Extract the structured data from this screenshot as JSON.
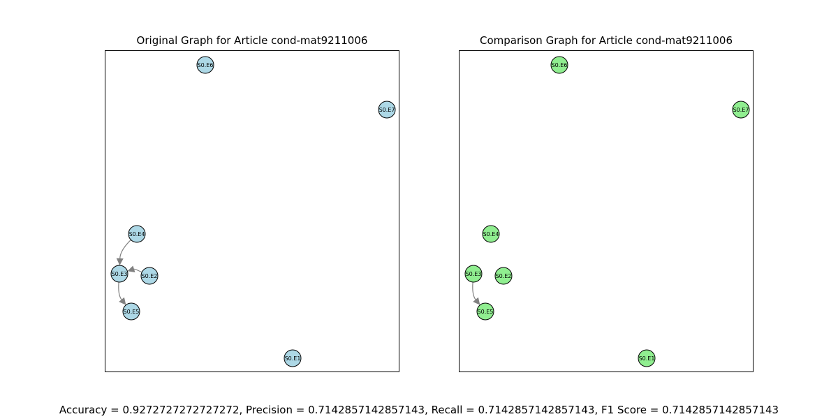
{
  "colors": {
    "original_node": "#add8e6",
    "comparison_node": "#90ee90",
    "edge": "#808080",
    "node_outline": "#000000"
  },
  "graphs": [
    {
      "title": "Original Graph for Article cond-mat9211006",
      "nodes": [
        "S0.E6",
        "S0.E7",
        "S0.E4",
        "S0.E3",
        "S0.E2",
        "S0.E5",
        "S0.E1"
      ],
      "edges": [
        {
          "from": "S0.E4",
          "to": "S0.E3"
        },
        {
          "from": "S0.E2",
          "to": "S0.E3"
        },
        {
          "from": "S0.E3",
          "to": "S0.E5"
        }
      ]
    },
    {
      "title": "Comparison Graph for Article cond-mat9211006",
      "nodes": [
        "S0.E6",
        "S0.E7",
        "S0.E4",
        "S0.E3",
        "S0.E2",
        "S0.E5",
        "S0.E1"
      ],
      "edges": [
        {
          "from": "S0.E3",
          "to": "S0.E5"
        }
      ]
    }
  ],
  "metrics_text": "Accuracy = 0.9272727272727272, Precision = 0.7142857142857143, Recall = 0.7142857142857143, F1 Score = 0.7142857142857143"
}
